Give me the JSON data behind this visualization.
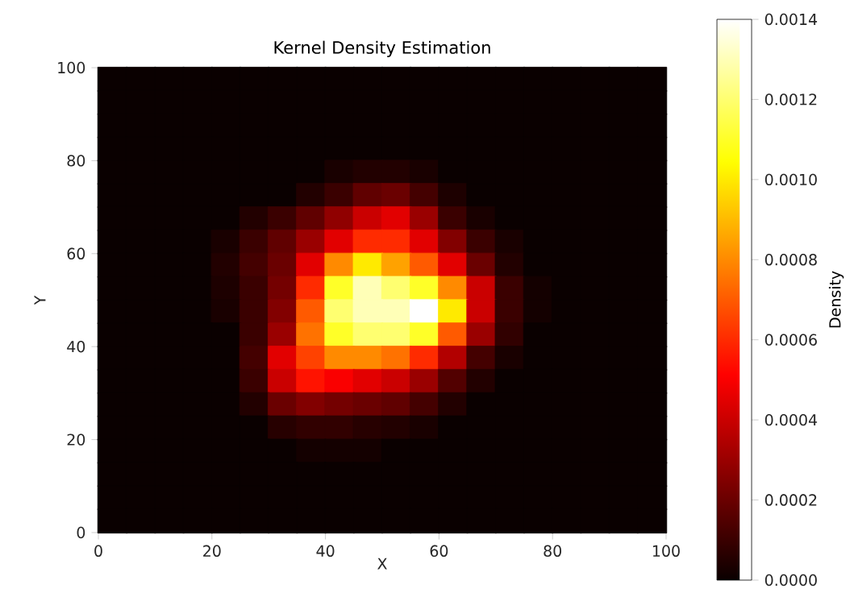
{
  "chart_data": {
    "type": "heatmap",
    "title": "Kernel Density Estimation",
    "xlabel": "X",
    "ylabel": "Y",
    "clabel": "Density",
    "xlim": [
      0,
      100
    ],
    "ylim": [
      0,
      100
    ],
    "xticks": [
      0,
      20,
      40,
      60,
      80,
      100
    ],
    "yticks": [
      0,
      20,
      40,
      60,
      80,
      100
    ],
    "clim": [
      0,
      0.0014
    ],
    "cticks": [
      {
        "value": 0,
        "label": "0.0000"
      },
      {
        "value": 0.0002,
        "label": "0.0002"
      },
      {
        "value": 0.0004,
        "label": "0.0004"
      },
      {
        "value": 0.0006,
        "label": "0.0006"
      },
      {
        "value": 0.0008,
        "label": "0.0008"
      },
      {
        "value": 0.001,
        "label": "0.0010"
      },
      {
        "value": 0.0012,
        "label": "0.0012"
      },
      {
        "value": 0.0014,
        "label": "0.0014"
      }
    ],
    "cells": [
      [
        0,
        0,
        0,
        0,
        0,
        0,
        0,
        0,
        0,
        0,
        0,
        0,
        0,
        0,
        0,
        0,
        0,
        0,
        0,
        0
      ],
      [
        0,
        0,
        0,
        0,
        0,
        0,
        0,
        0,
        0,
        0,
        0,
        0,
        0,
        0,
        0,
        0,
        0,
        0,
        0,
        0
      ],
      [
        0,
        0,
        0,
        0,
        0,
        0,
        0,
        0,
        0,
        0,
        0,
        0,
        0,
        0,
        0,
        0,
        0,
        0,
        0,
        0
      ],
      [
        0,
        0,
        0,
        0,
        0,
        0,
        0,
        0,
        0,
        0,
        0,
        0,
        0,
        0,
        0,
        0,
        0,
        0,
        0,
        0
      ],
      [
        0,
        0,
        0,
        0,
        0,
        0,
        0,
        0,
        3e-05,
        5e-05,
        5e-05,
        3e-05,
        0,
        0,
        0,
        0,
        0,
        0,
        0,
        0
      ],
      [
        0,
        0,
        0,
        0,
        0,
        0,
        0,
        5e-05,
        0.0001,
        0.00018,
        0.0002,
        0.00012,
        4e-05,
        0,
        0,
        0,
        0,
        0,
        0,
        0
      ],
      [
        0,
        0,
        0,
        0,
        0,
        5e-05,
        0.0001,
        0.00018,
        0.00028,
        0.0004,
        0.00045,
        0.0003,
        0.0001,
        3e-05,
        0,
        0,
        0,
        0,
        0,
        0
      ],
      [
        0,
        0,
        0,
        0,
        3e-05,
        0.0001,
        0.00018,
        0.0003,
        0.00045,
        0.0006,
        0.0006,
        0.00045,
        0.00025,
        0.0001,
        3e-05,
        0,
        0,
        0,
        0,
        0
      ],
      [
        0,
        0,
        0,
        0,
        5e-05,
        0.00012,
        0.0002,
        0.00045,
        0.0008,
        0.001,
        0.00085,
        0.0007,
        0.00045,
        0.0002,
        5e-05,
        0,
        0,
        0,
        0,
        0
      ],
      [
        0,
        0,
        0,
        0,
        4e-05,
        0.0001,
        0.00022,
        0.0006,
        0.0011,
        0.0013,
        0.0012,
        0.0011,
        0.0008,
        0.0004,
        0.0001,
        2e-05,
        0,
        0,
        0,
        0
      ],
      [
        0,
        0,
        0,
        0,
        3e-05,
        0.0001,
        0.00025,
        0.0007,
        0.0012,
        0.0013,
        0.0013,
        0.0014,
        0.001,
        0.0004,
        0.0001,
        2e-05,
        0,
        0,
        0,
        0
      ],
      [
        0,
        0,
        0,
        0,
        0,
        0.0001,
        0.0003,
        0.00075,
        0.0011,
        0.0012,
        0.0012,
        0.0011,
        0.0007,
        0.0003,
        8e-05,
        0,
        0,
        0,
        0,
        0
      ],
      [
        0,
        0,
        0,
        0,
        0,
        0.00012,
        0.00045,
        0.00065,
        0.0008,
        0.0008,
        0.00075,
        0.0006,
        0.00035,
        0.00012,
        3e-05,
        0,
        0,
        0,
        0,
        0
      ],
      [
        0,
        0,
        0,
        0,
        0,
        0.0001,
        0.0004,
        0.00055,
        0.0005,
        0.00045,
        0.0004,
        0.0003,
        0.00015,
        5e-05,
        0,
        0,
        0,
        0,
        0,
        0
      ],
      [
        0,
        0,
        0,
        0,
        0,
        5e-05,
        0.0002,
        0.00025,
        0.00022,
        0.0002,
        0.00018,
        0.00012,
        5e-05,
        0,
        0,
        0,
        0,
        0,
        0,
        0
      ],
      [
        0,
        0,
        0,
        0,
        0,
        0,
        6e-05,
        8e-05,
        8e-05,
        6e-05,
        5e-05,
        3e-05,
        0,
        0,
        0,
        0,
        0,
        0,
        0,
        0
      ],
      [
        0,
        0,
        0,
        0,
        0,
        0,
        0,
        2e-05,
        2e-05,
        2e-05,
        0,
        0,
        0,
        0,
        0,
        0,
        0,
        0,
        0,
        0
      ],
      [
        0,
        0,
        0,
        0,
        0,
        0,
        0,
        0,
        0,
        0,
        0,
        0,
        0,
        0,
        0,
        0,
        0,
        0,
        0,
        0
      ],
      [
        0,
        0,
        0,
        0,
        0,
        0,
        0,
        0,
        0,
        0,
        0,
        0,
        0,
        0,
        0,
        0,
        0,
        0,
        0,
        0
      ],
      [
        0,
        0,
        0,
        0,
        0,
        0,
        0,
        0,
        0,
        0,
        0,
        0,
        0,
        0,
        0,
        0,
        0,
        0,
        0,
        0
      ]
    ]
  }
}
